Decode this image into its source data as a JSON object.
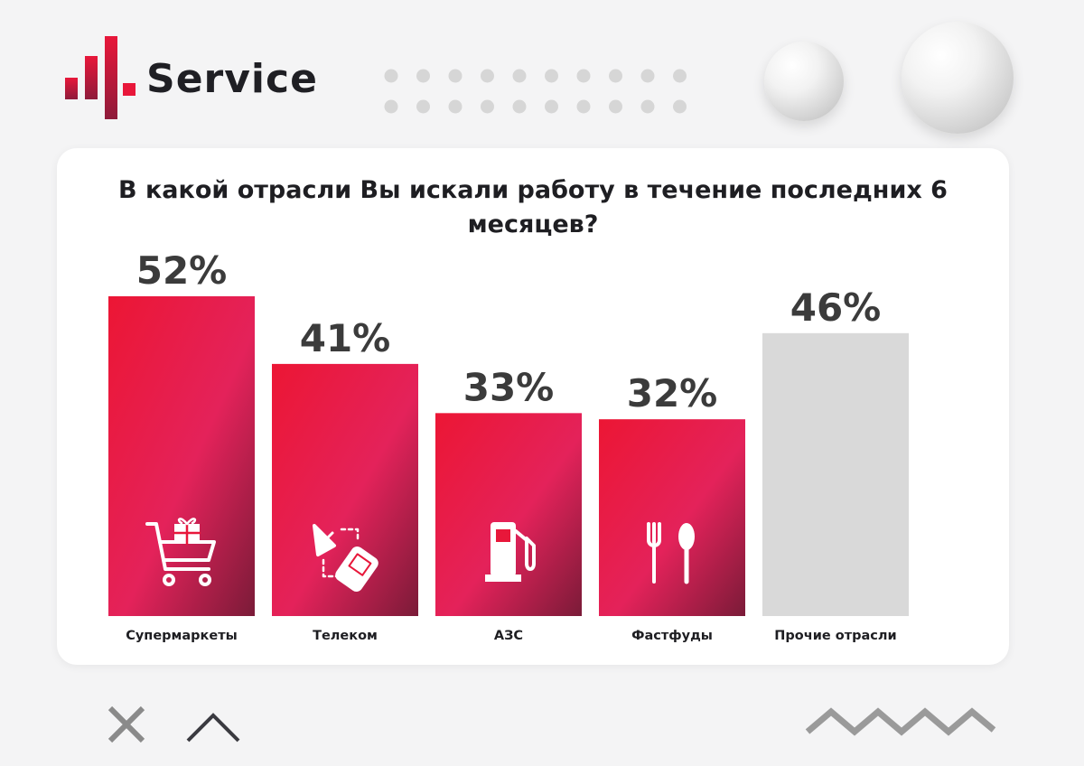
{
  "brand": {
    "name": "Service"
  },
  "chart_data": {
    "type": "bar",
    "title": "В какой отрасли Вы искали работу в течение последних 6 месяцев?",
    "categories": [
      "Супермаркеты",
      "Телеком",
      "АЗС",
      "Фастфуды",
      "Прочие отрасли"
    ],
    "values": [
      52,
      41,
      33,
      32,
      46
    ],
    "value_labels": [
      "52%",
      "41%",
      "33%",
      "32%",
      "46%"
    ],
    "icons": [
      "shopping-cart-icon",
      "satellite-phone-icon",
      "fuel-pump-icon",
      "fork-spoon-icon",
      ""
    ],
    "colors": {
      "highlight": "#e8173a",
      "highlight_dark": "#7a1b38",
      "other": "#d9d9d9",
      "label": "#3b3b3b"
    },
    "ylim": [
      0,
      52
    ],
    "grid": false
  }
}
